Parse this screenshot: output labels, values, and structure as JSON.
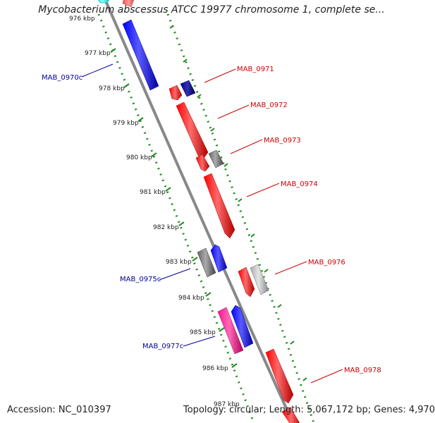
{
  "title": "Mycobacterium abscessus ATCC 19977 chromosome 1, complete se...",
  "footer": {
    "accession": "Accession: NC_010397",
    "summary": "Topology: circular; Length: 5,067,172 bp; Genes: 4,970"
  },
  "colors": {
    "forward_gene": "#ff0000",
    "reverse_gene": "#0000ff",
    "other_feature": "#777777",
    "magenta_feature": "#ff1493",
    "dark_blue_feature": "#000080",
    "cyan_feature": "#00e5e5",
    "backbone": "#888888",
    "tick": "#228b22",
    "forward_label": "#cc0000",
    "reverse_label": "#000099"
  },
  "kbp_labels": [
    "976 kbp",
    "977 kbp",
    "978 kbp",
    "979 kbp",
    "980 kbp",
    "981 kbp",
    "982 kbp",
    "983 kbp",
    "984 kbp",
    "985 kbp",
    "986 kbp",
    "987 kbp"
  ],
  "gene_labels": [
    {
      "text": "MAB_0970c",
      "strand": "reverse"
    },
    {
      "text": "MAB_0971",
      "strand": "forward"
    },
    {
      "text": "MAB_0972",
      "strand": "forward"
    },
    {
      "text": "MAB_0973",
      "strand": "forward"
    },
    {
      "text": "MAB_0974",
      "strand": "forward"
    },
    {
      "text": "MAB_0975c",
      "strand": "reverse"
    },
    {
      "text": "MAB_0976",
      "strand": "forward"
    },
    {
      "text": "MAB_0977c",
      "strand": "reverse"
    },
    {
      "text": "MAB_0978",
      "strand": "forward"
    }
  ]
}
